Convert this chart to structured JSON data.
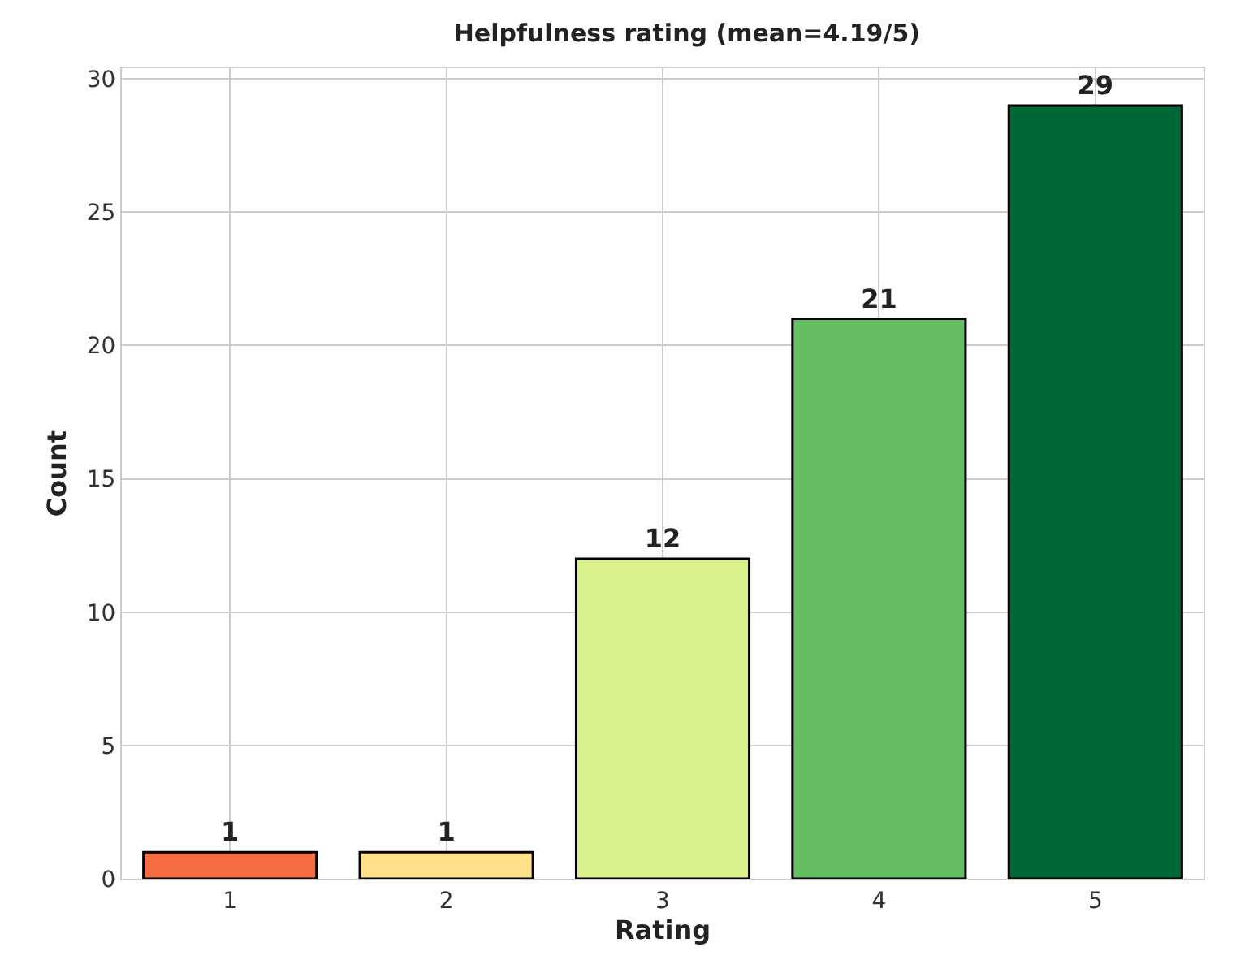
{
  "chart_data": {
    "type": "bar",
    "title": "Helpfulness rating (mean=4.19/5)",
    "xlabel": "Rating",
    "ylabel": "Count",
    "categories": [
      "1",
      "2",
      "3",
      "4",
      "5"
    ],
    "values": [
      1,
      1,
      12,
      21,
      29
    ],
    "colors": [
      "#f46d43",
      "#fee08b",
      "#d9ef8b",
      "#66bd63",
      "#006837"
    ],
    "ylim": [
      0,
      30.4
    ],
    "yticks": [
      0,
      5,
      10,
      15,
      20,
      25,
      30
    ],
    "grid": true,
    "data_labels": true
  }
}
